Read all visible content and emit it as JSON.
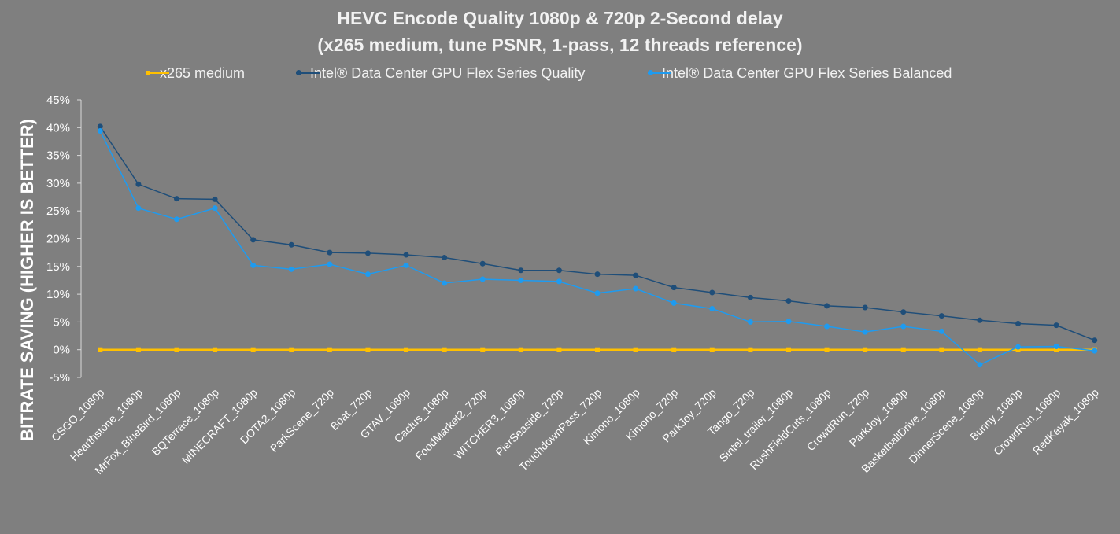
{
  "chart_data": {
    "type": "line",
    "title": [
      "HEVC Encode Quality 1080p & 720p 2-Second delay",
      "(x265 medium, tune PSNR, 1-pass, 12 threads reference)"
    ],
    "xlabel": "",
    "ylabel": "BITRATE SAVING (HIGHER IS BETTER)",
    "ylim": [
      -5,
      45
    ],
    "yticks": [
      "-5%",
      "0%",
      "5%",
      "10%",
      "15%",
      "20%",
      "25%",
      "30%",
      "35%",
      "40%",
      "45%"
    ],
    "gridlines": false,
    "legend_position": "top",
    "categories": [
      "CSGO_1080p",
      "Hearthstone_1080p",
      "MrFox_BlueBird_1080p",
      "BQTerrace_1080p",
      "MINECRAFT_1080p",
      "DOTA2_1080p",
      "ParkScene_720p",
      "Boat_720p",
      "GTAV_1080p",
      "Cactus_1080p",
      "FoodMarket2_720p",
      "WITCHER3_1080p",
      "PierSeaside_720p",
      "TouchdownPass_720p",
      "Kimono_1080p",
      "Kimono_720p",
      "ParkJoy_720p",
      "Tango_720p",
      "Sintel_trailer_1080p",
      "RushFieldCuts_1080p",
      "CrowdRun_720p",
      "ParkJoy_1080p",
      "BasketballDrive_1080p",
      "DinnerScene_1080p",
      "Bunny_1080p",
      "CrowdRun_1080p",
      "RedKayak_1080p"
    ],
    "series": [
      {
        "name": "x265 medium",
        "color": "#ffc000",
        "marker": "square",
        "values": [
          0,
          0,
          0,
          0,
          0,
          0,
          0,
          0,
          0,
          0,
          0,
          0,
          0,
          0,
          0,
          0,
          0,
          0,
          0,
          0,
          0,
          0,
          0,
          0,
          0,
          0,
          0
        ]
      },
      {
        "name": "Intel® Data Center GPU Flex Series Quality",
        "color": "#1f4e79",
        "marker": "circle",
        "values": [
          40.2,
          29.8,
          27.2,
          27.1,
          19.8,
          18.9,
          17.5,
          17.4,
          17.1,
          16.6,
          15.5,
          14.3,
          14.3,
          13.6,
          13.4,
          11.2,
          10.3,
          9.4,
          8.8,
          7.9,
          7.6,
          6.8,
          6.1,
          5.3,
          4.7,
          4.4,
          1.7
        ]
      },
      {
        "name": "Intel® Data Center GPU Flex Series Balanced",
        "color": "#1e9bf0",
        "marker": "circle",
        "values": [
          39.4,
          25.5,
          23.5,
          25.5,
          15.2,
          14.5,
          15.4,
          13.6,
          15.2,
          12.0,
          12.7,
          12.5,
          12.3,
          10.2,
          11.0,
          8.4,
          7.4,
          5.0,
          5.1,
          4.2,
          3.2,
          4.2,
          3.3,
          -2.7,
          0.5,
          0.6,
          -0.2
        ]
      }
    ]
  }
}
